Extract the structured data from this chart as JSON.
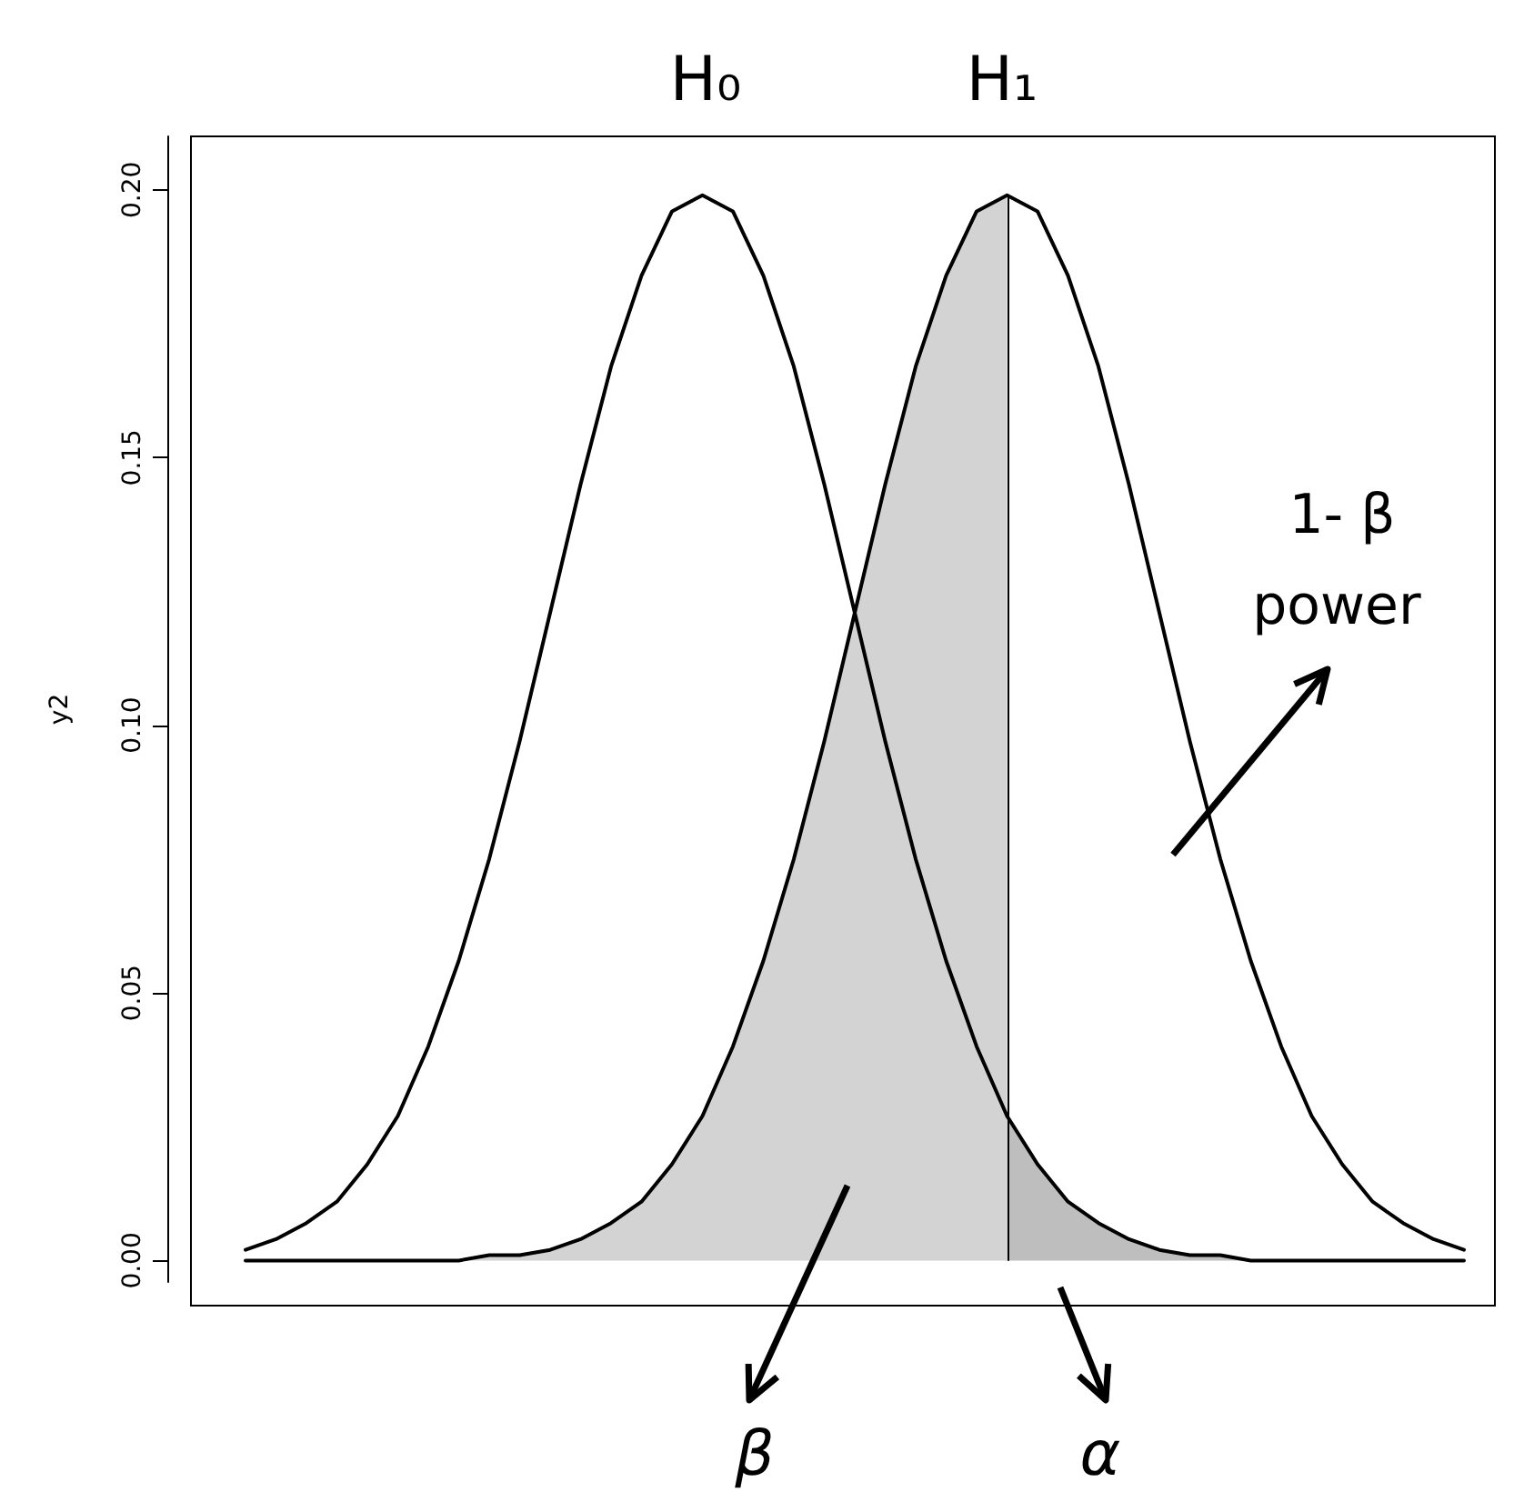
{
  "chart_data": {
    "type": "line",
    "ylabel": "y2",
    "categories": [
      null,
      null,
      null,
      null,
      null,
      null,
      null,
      null,
      null,
      null,
      null,
      null,
      null,
      null,
      null,
      null,
      null,
      null,
      null,
      null,
      null,
      null,
      null,
      null,
      null,
      null,
      null,
      null,
      null,
      null,
      null,
      null,
      null,
      null,
      null,
      null,
      null,
      null,
      null,
      null,
      null
    ],
    "series": [
      {
        "type": "area",
        "color": "#d3d3d3",
        "values": [
          0,
          0,
          0,
          0,
          0,
          0,
          0,
          0,
          0.001,
          0.001,
          0.002,
          0.004,
          0.007,
          0.011,
          0.018,
          0.027,
          0.04,
          0.056,
          0.075,
          0.097,
          0.121,
          0.145,
          0.167,
          0.184,
          0.196,
          0.199,
          null,
          null,
          null,
          null,
          null,
          null,
          null,
          null,
          null,
          null,
          null,
          null,
          null,
          null,
          null
        ]
      },
      {
        "type": "area",
        "color": "#bebebe",
        "values": [
          null,
          null,
          null,
          null,
          null,
          null,
          null,
          null,
          null,
          null,
          null,
          null,
          null,
          null,
          null,
          null,
          null,
          null,
          null,
          null,
          null,
          null,
          null,
          null,
          null,
          0.027,
          0.018,
          0.011,
          0.007,
          0.004,
          0.002,
          0.001,
          0.001,
          0,
          0,
          0,
          0,
          0,
          0,
          0,
          0
        ]
      },
      {
        "type": "line",
        "color": "#000000",
        "values": [
          0.002,
          0.004,
          0.007,
          0.011,
          0.018,
          0.027,
          0.04,
          0.056,
          0.075,
          0.097,
          0.121,
          0.145,
          0.167,
          0.184,
          0.196,
          0.199,
          0.196,
          0.184,
          0.167,
          0.145,
          0.121,
          0.097,
          0.075,
          0.056,
          0.04,
          0.027,
          0.018,
          0.011,
          0.007,
          0.004,
          0.002,
          0.001,
          0.001,
          0,
          0,
          0,
          0,
          0,
          0,
          0,
          0
        ]
      },
      {
        "type": "line",
        "color": "#000000",
        "values": [
          0,
          0,
          0,
          0,
          0,
          0,
          0,
          0,
          0.001,
          0.001,
          0.002,
          0.004,
          0.007,
          0.011,
          0.018,
          0.027,
          0.04,
          0.056,
          0.075,
          0.097,
          0.121,
          0.145,
          0.167,
          0.184,
          0.196,
          0.199,
          0.196,
          0.184,
          0.167,
          0.145,
          0.121,
          0.097,
          0.075,
          0.056,
          0.04,
          0.027,
          0.018,
          0.011,
          0.007,
          0.004,
          0.002
        ]
      }
    ],
    "ylim": [
      -0.004,
      0.21
    ],
    "yticks": [
      {
        "value": 0,
        "label": "0.00"
      },
      {
        "value": 0.05,
        "label": "0.05"
      },
      {
        "value": 0.1,
        "label": "0.10"
      },
      {
        "value": 0.15,
        "label": "0.15"
      },
      {
        "value": 0.2,
        "label": "0.20"
      }
    ],
    "tick_labels": "y",
    "annotations": [
      "H₀",
      "H₁",
      "β",
      "α",
      "1- β",
      "power"
    ]
  }
}
